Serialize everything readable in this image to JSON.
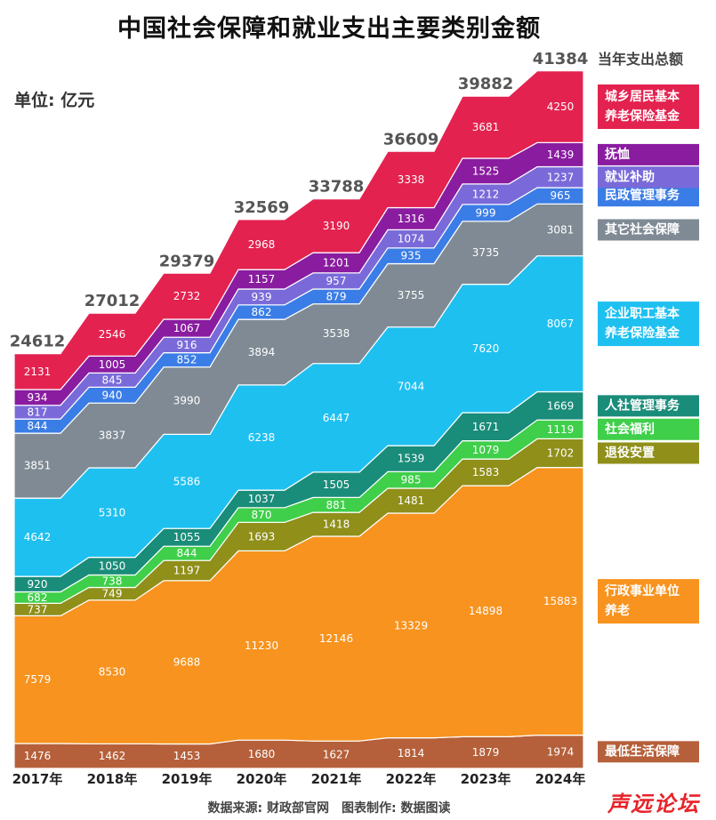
{
  "title": "中国社会保障和就业支出主要类别金额",
  "unit": "单位: 亿元",
  "source": "数据来源: 财政部官网　图表制作: 数据图读",
  "watermark": "声远论坛",
  "chart_data": {
    "type": "area",
    "stacked": true,
    "categories": [
      "2017年",
      "2018年",
      "2019年",
      "2020年",
      "2021年",
      "2022年",
      "2023年",
      "2024年"
    ],
    "totals": [
      24612,
      27012,
      29379,
      32569,
      33788,
      36609,
      39882,
      41384
    ],
    "total_label": "当年支出总额",
    "series": [
      {
        "name": "最低生活保障",
        "color": "#b5603a",
        "values": [
          1476,
          1462,
          1453,
          1680,
          1627,
          1814,
          1879,
          1974
        ]
      },
      {
        "name": "行政事业单位养老",
        "color": "#f7931e",
        "values": [
          7579,
          8530,
          9688,
          11230,
          12146,
          13329,
          14898,
          15883
        ]
      },
      {
        "name": "退役安置",
        "color": "#8f8f1a",
        "values": [
          737,
          749,
          1197,
          1693,
          1418,
          1481,
          1583,
          1702
        ]
      },
      {
        "name": "社会福利",
        "color": "#3fcf4a",
        "values": [
          682,
          738,
          844,
          870,
          881,
          985,
          1079,
          1119
        ]
      },
      {
        "name": "人社管理事务",
        "color": "#1a8c7a",
        "values": [
          920,
          1050,
          1055,
          1037,
          1505,
          1539,
          1671,
          1669
        ]
      },
      {
        "name": "企业职工基本养老保险基金",
        "color": "#1ec0f0",
        "values": [
          4642,
          5310,
          5586,
          6238,
          6447,
          7044,
          7620,
          8067
        ]
      },
      {
        "name": "其它社会保障",
        "color": "#7f8a94",
        "values": [
          3851,
          3837,
          3990,
          3894,
          3538,
          3755,
          3735,
          3081
        ]
      },
      {
        "name": "民政管理事务",
        "color": "#3b7de6",
        "values": [
          844,
          940,
          852,
          862,
          879,
          935,
          999,
          965
        ]
      },
      {
        "name": "就业补助",
        "color": "#7a6ad9",
        "values": [
          817,
          845,
          916,
          939,
          957,
          1074,
          1212,
          1237
        ]
      },
      {
        "name": "抚恤",
        "color": "#8a1ca0",
        "values": [
          934,
          1005,
          1067,
          1157,
          1201,
          1316,
          1525,
          1439
        ]
      },
      {
        "name": "城乡居民基本养老保险基金",
        "color": "#e3224f",
        "values": [
          2131,
          2546,
          2732,
          2968,
          3190,
          3338,
          3681,
          4250
        ]
      }
    ],
    "legend_labels": [
      [
        "最低生活保障"
      ],
      [
        "行政事业单位",
        "养老"
      ],
      [
        "退役安置"
      ],
      [
        "社会福利"
      ],
      [
        "人社管理事务"
      ],
      [
        "企业职工基本",
        "养老保险基金"
      ],
      [
        "其它社会保障"
      ],
      [
        "民政管理事务"
      ],
      [
        "就业补助"
      ],
      [
        "抚恤"
      ],
      [
        "城乡居民基本",
        "养老保险基金"
      ]
    ],
    "legend_position": "right",
    "ylim": [
      0,
      41384
    ]
  }
}
